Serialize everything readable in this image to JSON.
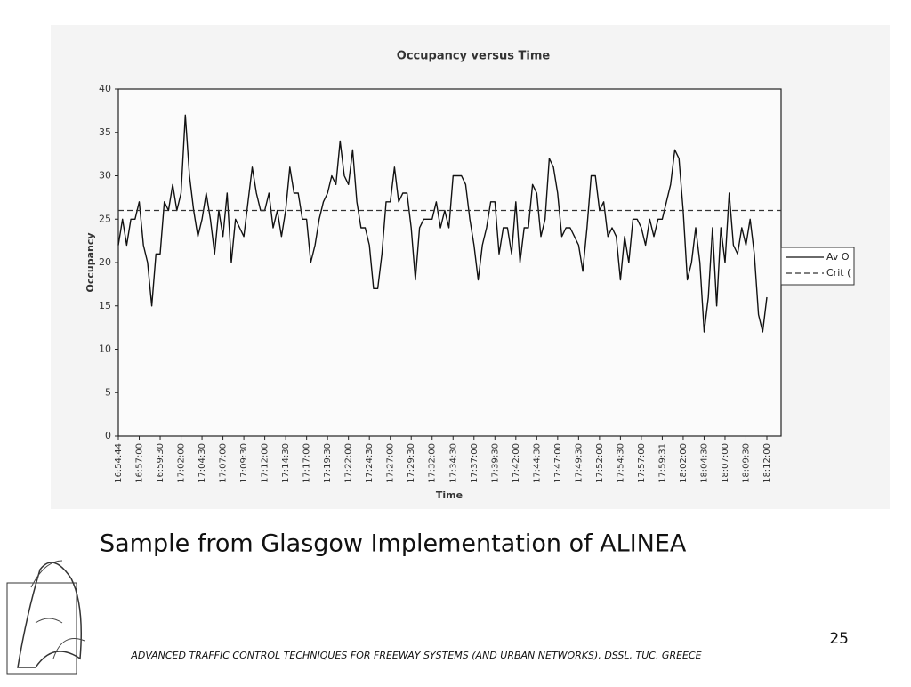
{
  "slide": {
    "heading": "Sample from Glasgow Implementation of ALINEA",
    "page_number": "25",
    "footer": "ADVANCED TRAFFIC CONTROL TECHNIQUES FOR FREEWAY SYSTEMS (AND URBAN NETWORKS), DSSL, TUC, GREECE"
  },
  "chart_data": {
    "type": "line",
    "title": "Occupancy versus Time",
    "x_label": "Time",
    "y_label": "Occupancy",
    "categories": [
      "16:54:44",
      null,
      null,
      null,
      null,
      "16:57:00",
      null,
      null,
      null,
      null,
      "16:59:30",
      null,
      null,
      null,
      null,
      "17:02:00",
      null,
      null,
      null,
      null,
      "17:04:30",
      null,
      null,
      null,
      null,
      "17:07:00",
      null,
      null,
      null,
      null,
      "17:09:30",
      null,
      null,
      null,
      null,
      "17:12:00",
      null,
      null,
      null,
      null,
      "17:14:30",
      null,
      null,
      null,
      null,
      "17:17:00",
      null,
      null,
      null,
      null,
      "17:19:30",
      null,
      null,
      null,
      null,
      "17:22:00",
      null,
      null,
      null,
      null,
      "17:24:30",
      null,
      null,
      null,
      null,
      "17:27:00",
      null,
      null,
      null,
      null,
      "17:29:30",
      null,
      null,
      null,
      null,
      "17:32:00",
      null,
      null,
      null,
      null,
      "17:34:30",
      null,
      null,
      null,
      null,
      "17:37:00",
      null,
      null,
      null,
      null,
      "17:39:30",
      null,
      null,
      null,
      null,
      "17:42:00",
      null,
      null,
      null,
      null,
      "17:44:30",
      null,
      null,
      null,
      null,
      "17:47:00",
      null,
      null,
      null,
      null,
      "17:49:30",
      null,
      null,
      null,
      null,
      "17:52:00",
      null,
      null,
      null,
      null,
      "17:54:30",
      null,
      null,
      null,
      null,
      "17:57:00",
      null,
      null,
      null,
      null,
      "17:59:31",
      null,
      null,
      null,
      null,
      "18:02:00",
      null,
      null,
      null,
      null,
      "18:04:30",
      null,
      null,
      null,
      null,
      "18:07:00",
      null,
      null,
      null,
      null,
      "18:09:30",
      null,
      null,
      null,
      null,
      "18:12:00"
    ],
    "series": [
      {
        "name": "Av O",
        "color": "#111111",
        "values": [
          22,
          25,
          22,
          25,
          25,
          27,
          22,
          20,
          15,
          21,
          21,
          27,
          26,
          29,
          26,
          28,
          37,
          30,
          26,
          23,
          25,
          28,
          25,
          21,
          26,
          23,
          28,
          20,
          25,
          24,
          23,
          27,
          31,
          28,
          26,
          26,
          28,
          24,
          26,
          23,
          26,
          31,
          28,
          28,
          25,
          25,
          20,
          22,
          25,
          27,
          28,
          30,
          29,
          34,
          30,
          29,
          33,
          27,
          24,
          24,
          22,
          17,
          17,
          21,
          27,
          27,
          31,
          27,
          28,
          28,
          24,
          18,
          24,
          25,
          25,
          25,
          27,
          24,
          26,
          24,
          30,
          30,
          30,
          29,
          25,
          22,
          18,
          22,
          24,
          27,
          27,
          21,
          24,
          24,
          21,
          27,
          20,
          24,
          24,
          29,
          28,
          23,
          25,
          32,
          31,
          28,
          23,
          24,
          24,
          23,
          22,
          19,
          24,
          30,
          30,
          26,
          27,
          23,
          24,
          23,
          18,
          23,
          20,
          25,
          25,
          24,
          22,
          25,
          23,
          25,
          25,
          27,
          29,
          33,
          32,
          26,
          18,
          20,
          24,
          20,
          12,
          16,
          24,
          15,
          24,
          20,
          28,
          22,
          21,
          24,
          22,
          25,
          21,
          14,
          12,
          16
        ]
      }
    ],
    "reference_lines": [
      {
        "name": "Crit (",
        "color": "#333333",
        "value": 26,
        "style": "dashed"
      }
    ],
    "ylim": [
      0,
      40
    ],
    "yticks": [
      0,
      5,
      10,
      15,
      20,
      25,
      30,
      35,
      40
    ],
    "grid": false
  }
}
